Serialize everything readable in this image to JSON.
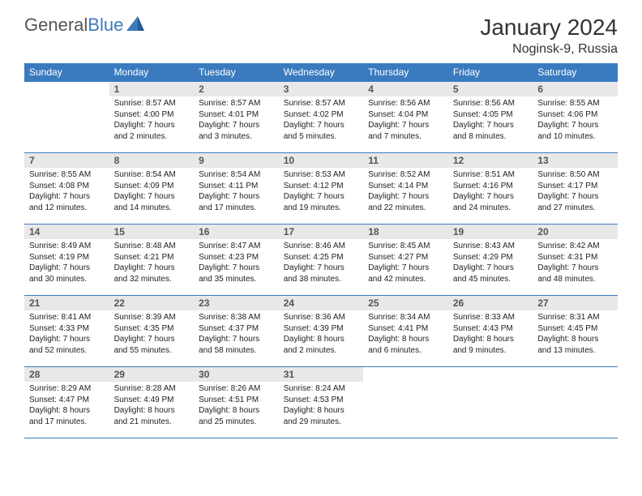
{
  "brand": {
    "name_part1": "General",
    "name_part2": "Blue",
    "accent_color": "#3a7bbf"
  },
  "title": "January 2024",
  "location": "Noginsk-9, Russia",
  "weekdays": [
    "Sunday",
    "Monday",
    "Tuesday",
    "Wednesday",
    "Thursday",
    "Friday",
    "Saturday"
  ],
  "colors": {
    "header_bg": "#3a7bbf",
    "header_fg": "#ffffff",
    "daynum_bg": "#e8e8e8",
    "border": "#3a7bbf",
    "text": "#222222"
  },
  "typography": {
    "title_fontsize": 28,
    "location_fontsize": 16,
    "weekday_fontsize": 12,
    "daynum_fontsize": 12,
    "body_fontsize": 10
  },
  "start_weekday_index": 1,
  "days": [
    {
      "n": 1,
      "sunrise": "8:57 AM",
      "sunset": "4:00 PM",
      "daylight": "7 hours and 2 minutes."
    },
    {
      "n": 2,
      "sunrise": "8:57 AM",
      "sunset": "4:01 PM",
      "daylight": "7 hours and 3 minutes."
    },
    {
      "n": 3,
      "sunrise": "8:57 AM",
      "sunset": "4:02 PM",
      "daylight": "7 hours and 5 minutes."
    },
    {
      "n": 4,
      "sunrise": "8:56 AM",
      "sunset": "4:04 PM",
      "daylight": "7 hours and 7 minutes."
    },
    {
      "n": 5,
      "sunrise": "8:56 AM",
      "sunset": "4:05 PM",
      "daylight": "7 hours and 8 minutes."
    },
    {
      "n": 6,
      "sunrise": "8:55 AM",
      "sunset": "4:06 PM",
      "daylight": "7 hours and 10 minutes."
    },
    {
      "n": 7,
      "sunrise": "8:55 AM",
      "sunset": "4:08 PM",
      "daylight": "7 hours and 12 minutes."
    },
    {
      "n": 8,
      "sunrise": "8:54 AM",
      "sunset": "4:09 PM",
      "daylight": "7 hours and 14 minutes."
    },
    {
      "n": 9,
      "sunrise": "8:54 AM",
      "sunset": "4:11 PM",
      "daylight": "7 hours and 17 minutes."
    },
    {
      "n": 10,
      "sunrise": "8:53 AM",
      "sunset": "4:12 PM",
      "daylight": "7 hours and 19 minutes."
    },
    {
      "n": 11,
      "sunrise": "8:52 AM",
      "sunset": "4:14 PM",
      "daylight": "7 hours and 22 minutes."
    },
    {
      "n": 12,
      "sunrise": "8:51 AM",
      "sunset": "4:16 PM",
      "daylight": "7 hours and 24 minutes."
    },
    {
      "n": 13,
      "sunrise": "8:50 AM",
      "sunset": "4:17 PM",
      "daylight": "7 hours and 27 minutes."
    },
    {
      "n": 14,
      "sunrise": "8:49 AM",
      "sunset": "4:19 PM",
      "daylight": "7 hours and 30 minutes."
    },
    {
      "n": 15,
      "sunrise": "8:48 AM",
      "sunset": "4:21 PM",
      "daylight": "7 hours and 32 minutes."
    },
    {
      "n": 16,
      "sunrise": "8:47 AM",
      "sunset": "4:23 PM",
      "daylight": "7 hours and 35 minutes."
    },
    {
      "n": 17,
      "sunrise": "8:46 AM",
      "sunset": "4:25 PM",
      "daylight": "7 hours and 38 minutes."
    },
    {
      "n": 18,
      "sunrise": "8:45 AM",
      "sunset": "4:27 PM",
      "daylight": "7 hours and 42 minutes."
    },
    {
      "n": 19,
      "sunrise": "8:43 AM",
      "sunset": "4:29 PM",
      "daylight": "7 hours and 45 minutes."
    },
    {
      "n": 20,
      "sunrise": "8:42 AM",
      "sunset": "4:31 PM",
      "daylight": "7 hours and 48 minutes."
    },
    {
      "n": 21,
      "sunrise": "8:41 AM",
      "sunset": "4:33 PM",
      "daylight": "7 hours and 52 minutes."
    },
    {
      "n": 22,
      "sunrise": "8:39 AM",
      "sunset": "4:35 PM",
      "daylight": "7 hours and 55 minutes."
    },
    {
      "n": 23,
      "sunrise": "8:38 AM",
      "sunset": "4:37 PM",
      "daylight": "7 hours and 58 minutes."
    },
    {
      "n": 24,
      "sunrise": "8:36 AM",
      "sunset": "4:39 PM",
      "daylight": "8 hours and 2 minutes."
    },
    {
      "n": 25,
      "sunrise": "8:34 AM",
      "sunset": "4:41 PM",
      "daylight": "8 hours and 6 minutes."
    },
    {
      "n": 26,
      "sunrise": "8:33 AM",
      "sunset": "4:43 PM",
      "daylight": "8 hours and 9 minutes."
    },
    {
      "n": 27,
      "sunrise": "8:31 AM",
      "sunset": "4:45 PM",
      "daylight": "8 hours and 13 minutes."
    },
    {
      "n": 28,
      "sunrise": "8:29 AM",
      "sunset": "4:47 PM",
      "daylight": "8 hours and 17 minutes."
    },
    {
      "n": 29,
      "sunrise": "8:28 AM",
      "sunset": "4:49 PM",
      "daylight": "8 hours and 21 minutes."
    },
    {
      "n": 30,
      "sunrise": "8:26 AM",
      "sunset": "4:51 PM",
      "daylight": "8 hours and 25 minutes."
    },
    {
      "n": 31,
      "sunrise": "8:24 AM",
      "sunset": "4:53 PM",
      "daylight": "8 hours and 29 minutes."
    }
  ],
  "labels": {
    "sunrise": "Sunrise:",
    "sunset": "Sunset:",
    "daylight": "Daylight:"
  }
}
